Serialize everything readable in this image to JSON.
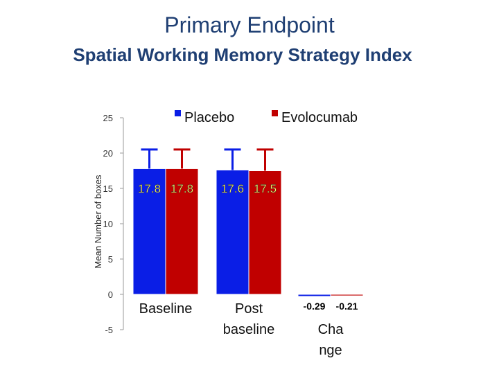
{
  "header": {
    "title": "Primary Endpoint",
    "subtitle": "Spatial Working Memory Strategy Index"
  },
  "colors": {
    "placebo": "#0a1ee6",
    "evolocumab": "#c00000",
    "title": "#1f3f73",
    "label_text": "#ffff66"
  },
  "chart_data": {
    "type": "bar",
    "categories": [
      "Baseline",
      "Post\nbaseline",
      "Cha\nnge"
    ],
    "series": [
      {
        "name": "Placebo",
        "values": [
          17.8,
          17.6,
          -0.29
        ],
        "labels": [
          "17.8",
          "17.6",
          "-0.29"
        ],
        "error_top": [
          20.5,
          20.5,
          null
        ]
      },
      {
        "name": "Evolocumab",
        "values": [
          17.8,
          17.5,
          -0.21
        ],
        "labels": [
          "17.8",
          "17.5",
          "-0.21"
        ],
        "error_top": [
          20.5,
          20.5,
          null
        ]
      }
    ],
    "ylabel": "Mean Number of boxes",
    "xlabel": "",
    "ylim": [
      -5,
      25
    ],
    "yticks": [
      -5,
      0,
      5,
      10,
      15,
      20,
      25
    ],
    "grid": false,
    "legend_position": "top"
  }
}
